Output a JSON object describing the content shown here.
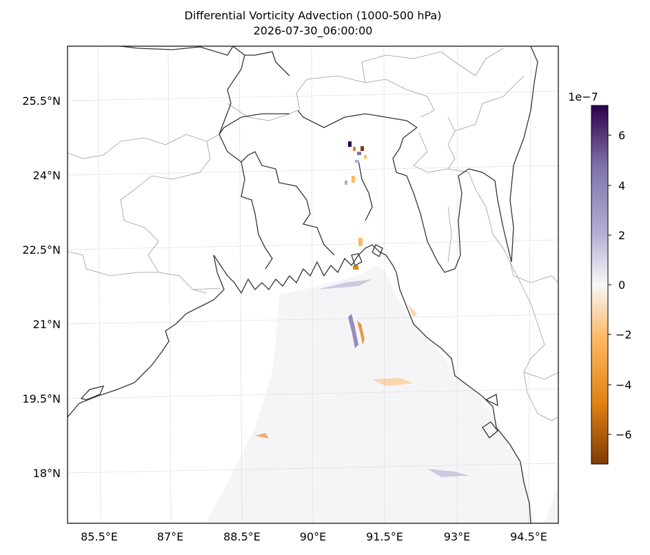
{
  "title": "Differential Vorticity Advection (1000-500 hPa)",
  "subtitle": "2026-07-30_06:00:00",
  "map": {
    "lon_labels": [
      "85.5°E",
      "87°E",
      "88.5°E",
      "90°E",
      "91.5°E",
      "93°E",
      "94.5°E"
    ],
    "lat_labels": [
      "25.5°N",
      "24°N",
      "22.5°N",
      "21°N",
      "19.5°N",
      "18°N"
    ],
    "lon_range": [
      84.8,
      94.95
    ],
    "lat_range": [
      17.0,
      26.1
    ]
  },
  "colorbar": {
    "exponent_label": "1e−7",
    "tick_labels": [
      "6",
      "4",
      "2",
      "0",
      "−2",
      "−4",
      "−6"
    ],
    "range": [
      -7.2,
      7.2
    ],
    "colormap": "PuOr",
    "colors": [
      "#7f3b08",
      "#e08214",
      "#fdb863",
      "#f7f7f7",
      "#b2abd2",
      "#8073ac",
      "#2d004b"
    ]
  }
}
